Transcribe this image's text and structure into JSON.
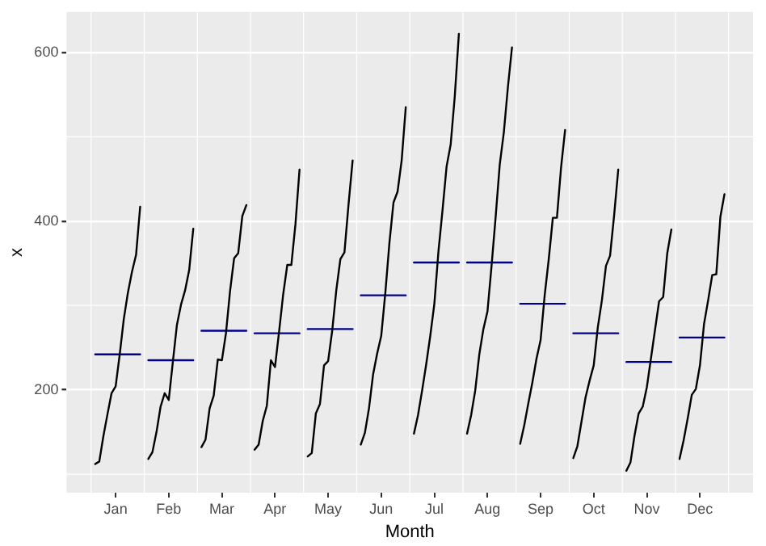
{
  "chart_data": {
    "type": "line",
    "xlabel": "Month",
    "ylabel": "x",
    "legend": false,
    "grid": true,
    "marker": "none",
    "ylim": [
      78,
      648
    ],
    "yticks": [
      200,
      400,
      600
    ],
    "categories": [
      null,
      null,
      null,
      null,
      null,
      "Jan",
      null,
      null,
      null,
      null,
      null,
      null,
      null,
      null,
      null,
      null,
      null,
      null,
      "Feb",
      null,
      null,
      null,
      null,
      null,
      null,
      null,
      null,
      null,
      null,
      null,
      null,
      "Mar",
      null,
      null,
      null,
      null,
      null,
      null,
      null,
      null,
      null,
      null,
      null,
      null,
      "Apr",
      null,
      null,
      null,
      null,
      null,
      null,
      null,
      null,
      null,
      null,
      null,
      null,
      "May",
      null,
      null,
      null,
      null,
      null,
      null,
      null,
      null,
      null,
      null,
      null,
      null,
      "Jun",
      null,
      null,
      null,
      null,
      null,
      null,
      null,
      null,
      null,
      null,
      null,
      null,
      "Jul",
      null,
      null,
      null,
      null,
      null,
      null,
      null,
      null,
      null,
      null,
      null,
      null,
      "Aug",
      null,
      null,
      null,
      null,
      null,
      null,
      null,
      null,
      null,
      null,
      null,
      null,
      "Sep",
      null,
      null,
      null,
      null,
      null,
      null,
      null,
      null,
      null,
      null,
      null,
      null,
      "Oct",
      null,
      null,
      null,
      null,
      null,
      null,
      null,
      null,
      null,
      null,
      null,
      null,
      "Nov",
      null,
      null,
      null,
      null,
      null,
      null,
      null,
      null,
      null,
      null,
      null,
      null,
      "Dec",
      null,
      null,
      null,
      null,
      null,
      null
    ],
    "series": [
      {
        "color": "#000000",
        "values": [
          112,
          115,
          145,
          171,
          196,
          204,
          242,
          284,
          315,
          340,
          360,
          417,
          null,
          118,
          126,
          150,
          180,
          196,
          188,
          233,
          277,
          301,
          318,
          342,
          391,
          null,
          132,
          141,
          178,
          193,
          236,
          235,
          267,
          317,
          356,
          362,
          406,
          419,
          null,
          129,
          135,
          163,
          181,
          235,
          227,
          269,
          313,
          348,
          348,
          396,
          461,
          null,
          121,
          125,
          172,
          183,
          229,
          234,
          270,
          318,
          355,
          363,
          420,
          472,
          null,
          135,
          149,
          178,
          218,
          243,
          264,
          315,
          374,
          422,
          435,
          472,
          535,
          null,
          148,
          170,
          199,
          230,
          264,
          302,
          364,
          413,
          465,
          491,
          548,
          622,
          null,
          148,
          170,
          199,
          242,
          272,
          293,
          347,
          405,
          467,
          505,
          559,
          606,
          null,
          136,
          158,
          184,
          209,
          237,
          259,
          312,
          355,
          404,
          404,
          463,
          508,
          null,
          119,
          133,
          162,
          191,
          211,
          229,
          274,
          306,
          347,
          359,
          407,
          461,
          null,
          104,
          114,
          146,
          172,
          180,
          203,
          237,
          271,
          305,
          310,
          362,
          390,
          null,
          118,
          140,
          166,
          194,
          201,
          229,
          278,
          306,
          336,
          337,
          405,
          432
        ]
      },
      {
        "color": "#00008b",
        "values": [
          242,
          242,
          242,
          242,
          242,
          242,
          242,
          242,
          242,
          242,
          242,
          242,
          null,
          235,
          235,
          235,
          235,
          235,
          235,
          235,
          235,
          235,
          235,
          235,
          235,
          null,
          270,
          270,
          270,
          270,
          270,
          270,
          270,
          270,
          270,
          270,
          270,
          270,
          null,
          267,
          267,
          267,
          267,
          267,
          267,
          267,
          267,
          267,
          267,
          267,
          267,
          null,
          272,
          272,
          272,
          272,
          272,
          272,
          272,
          272,
          272,
          272,
          272,
          272,
          null,
          312,
          312,
          312,
          312,
          312,
          312,
          312,
          312,
          312,
          312,
          312,
          312,
          null,
          351,
          351,
          351,
          351,
          351,
          351,
          351,
          351,
          351,
          351,
          351,
          351,
          null,
          351,
          351,
          351,
          351,
          351,
          351,
          351,
          351,
          351,
          351,
          351,
          351,
          null,
          302,
          302,
          302,
          302,
          302,
          302,
          302,
          302,
          302,
          302,
          302,
          302,
          null,
          267,
          267,
          267,
          267,
          267,
          267,
          267,
          267,
          267,
          267,
          267,
          267,
          null,
          233,
          233,
          233,
          233,
          233,
          233,
          233,
          233,
          233,
          233,
          233,
          233,
          null,
          262,
          262,
          262,
          262,
          262,
          262,
          262,
          262,
          262,
          262,
          262,
          262
        ]
      }
    ]
  }
}
